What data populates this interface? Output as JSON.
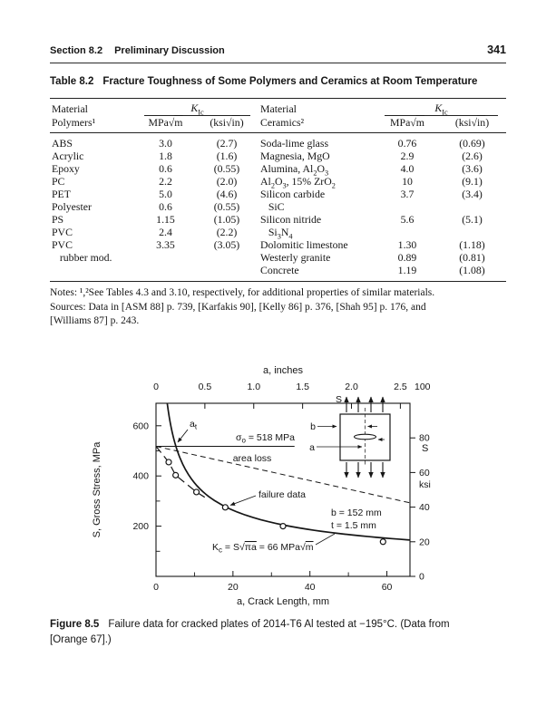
{
  "page": {
    "page_number": "341",
    "section_label": "Section 8.2",
    "section_title": "Preliminary Discussion"
  },
  "table": {
    "label": "Table 8.2",
    "title": "Fracture Toughness of Some Polymers and Ceramics at Room Temperature",
    "head": {
      "material": "Material",
      "polymers": "Polymers¹",
      "ceramics": "Ceramics²",
      "k": "K",
      "k_sub": "Ic"
    },
    "units": {
      "mpa_pre": "MPa√",
      "mpa_rad": "m",
      "ksi_pre": "(ksi√",
      "ksi_rad": "in",
      "ksi_post": ")"
    },
    "rows": [
      {
        "cells": [
          "ABS",
          "3.0",
          "(2.7)",
          "Soda-lime glass",
          "0.76",
          "(0.69)"
        ]
      },
      {
        "cells": [
          "Acrylic",
          "1.8",
          "(1.6)",
          "Magnesia, MgO",
          "2.9",
          "(2.6)"
        ]
      },
      {
        "cells": [
          "Epoxy",
          "0.6",
          "(0.55)",
          "Alumina, Al_2O_3",
          "4.0",
          "(3.6)"
        ]
      },
      {
        "cells": [
          "PC",
          "2.2",
          "(2.0)",
          "Al_2O_3, 15% ZrO_2",
          "10",
          "(9.1)"
        ]
      },
      {
        "cells": [
          "PET",
          "5.0",
          "(4.6)",
          "Silicon carbide",
          "3.7",
          "(3.4)"
        ]
      },
      {
        "cells": [
          "Polyester",
          "0.6",
          "(0.55)",
          "   SiC",
          "",
          ""
        ]
      },
      {
        "cells": [
          "PS",
          "1.15",
          "(1.05)",
          "Silicon nitride",
          "5.6",
          "(5.1)"
        ]
      },
      {
        "cells": [
          "PVC",
          "2.4",
          "(2.2)",
          "   Si_3N_4",
          "",
          ""
        ]
      },
      {
        "cells": [
          "PVC",
          "3.35",
          "(3.05)",
          "Dolomitic limestone",
          "1.30",
          "(1.18)"
        ]
      },
      {
        "cells": [
          "   rubber mod.",
          "",
          "",
          "Westerly granite",
          "0.89",
          "(0.81)"
        ]
      },
      {
        "cells": [
          "",
          "",
          "",
          "Concrete",
          "1.19",
          "(1.08)"
        ]
      }
    ]
  },
  "notes": {
    "line1": "Notes: ¹,²See Tables 4.3 and 3.10, respectively, for additional properties of similar materials.",
    "line2": "Sources: Data in [ASM 88] p. 739, [Karfakis 90], [Kelly 86] p. 376, [Shah 95] p. 176, and",
    "line3": "[Williams 87] p. 243."
  },
  "figure": {
    "label": "Figure 8.5",
    "caption_line1": "Failure data for cracked plates of 2014-T6 Al tested at −195°C. (Data from",
    "caption_line2": "[Orange 67].)"
  },
  "chart_data": {
    "type": "scatter",
    "x_top": {
      "title": "a, inches",
      "ticks": [
        "0",
        "0.5",
        "1.0",
        "1.5",
        "2.0",
        "2.5"
      ],
      "unit_to_mm": 25.4
    },
    "x_bottom": {
      "title": "a, Crack Length, mm",
      "ticks": [
        0,
        20,
        40,
        60
      ],
      "minor_ticks": [
        10,
        30,
        50
      ],
      "max_mm": 66
    },
    "y_left": {
      "title": "S, Gross Stress, MPa",
      "ticks": [
        200,
        400,
        600
      ],
      "minor_ticks": [
        100,
        300,
        500
      ],
      "max_mpa": 689.5
    },
    "y_right": {
      "tick_labels": [
        "0",
        "20",
        "40",
        "60",
        "80"
      ],
      "top_label": "100",
      "ksi_to_mpa": 6.895,
      "label_s": "S",
      "label_unit": "ksi"
    },
    "kc_curve": {
      "kc_mpa_sqrt_m": 66,
      "a_start_mm": 2.92,
      "a_end_mm": 66
    },
    "sigma_o": {
      "value_mpa": 518,
      "line_end_mm": 36,
      "sym": "σ",
      "sub": "o",
      "rest": " = 518 MPa"
    },
    "area_loss": {
      "label": "area loss",
      "points_mm_mpa": [
        [
          0,
          518
        ],
        [
          66,
          293
        ]
      ]
    },
    "yield_dash_points_mm_mpa": [
      [
        0,
        518
      ],
      [
        3.3,
        455
      ],
      [
        5.1,
        403
      ],
      [
        10.5,
        336
      ],
      [
        13,
        312
      ]
    ],
    "failure_points_mm_mpa": [
      [
        3.3,
        455
      ],
      [
        5.1,
        403
      ],
      [
        10.5,
        336
      ],
      [
        18,
        275
      ],
      [
        33,
        200
      ],
      [
        59,
        138
      ]
    ],
    "annotations": {
      "failure_label": "failure data",
      "at_main": "a",
      "at_sub": "t",
      "b_line": "b = 152 mm",
      "t_line": "t = 1.5 mm",
      "kc_parts": [
        [
          "K",
          ""
        ],
        [
          "c",
          "sub"
        ],
        [
          " = S",
          ""
        ],
        [
          "√",
          ""
        ],
        [
          "πa",
          "over"
        ],
        [
          " = 66 MPa",
          ""
        ],
        [
          "√",
          ""
        ],
        [
          "m",
          "over"
        ]
      ]
    },
    "specimen_labels": {
      "s": "S",
      "b": "b",
      "a": "a"
    }
  }
}
